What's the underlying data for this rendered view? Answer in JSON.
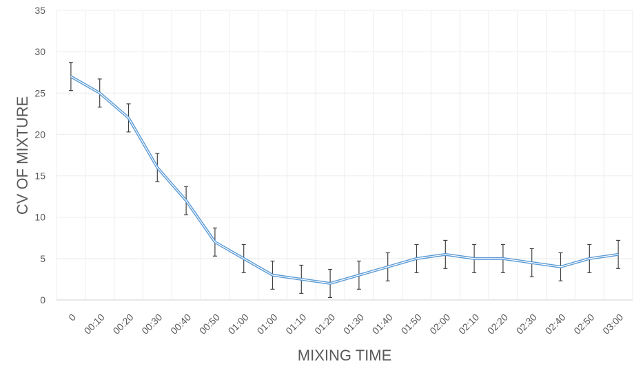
{
  "chart_data": {
    "type": "line",
    "title": "",
    "xlabel": "MIXING TIME",
    "ylabel": "CV OF MIXTURE",
    "categories": [
      "0",
      "00:10",
      "00:20",
      "00:30",
      "00:40",
      "00:50",
      "01:00",
      "01:00",
      "01:10",
      "01:20",
      "01:30",
      "01:40",
      "01:50",
      "02:00",
      "02:10",
      "02:20",
      "02:30",
      "02:40",
      "02:50",
      "03:00"
    ],
    "series": [
      {
        "name": "CV",
        "values": [
          27,
          25,
          22,
          16,
          12,
          7,
          5,
          3,
          2.5,
          2,
          3,
          4,
          5,
          5.5,
          5,
          5,
          4.5,
          4,
          5,
          5.5
        ],
        "error": 1.7,
        "color": "#5b9bd5"
      }
    ],
    "ylim": [
      0,
      35
    ],
    "yticks": [
      0,
      5,
      10,
      15,
      20,
      25,
      30,
      35
    ],
    "grid": true,
    "legend": "none"
  }
}
